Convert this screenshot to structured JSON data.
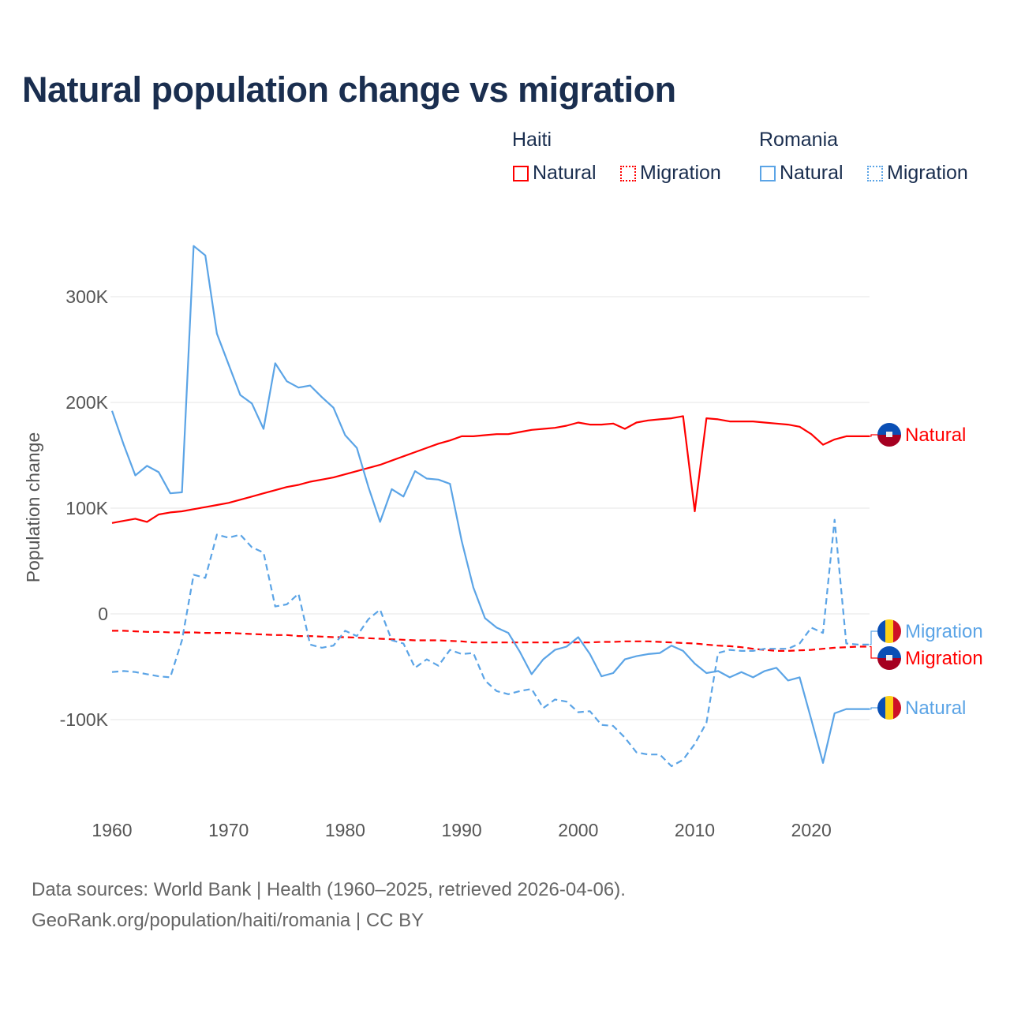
{
  "chart_data": {
    "type": "line",
    "title": "Natural population change vs migration",
    "xlabel": "",
    "ylabel": "Population change",
    "xlim": [
      1960,
      2025
    ],
    "ylim": [
      -150000,
      350000
    ],
    "x_ticks": [
      "1960",
      "1970",
      "1980",
      "1990",
      "2000",
      "2010",
      "2020"
    ],
    "y_ticks": [
      {
        "v": 300000,
        "label": "300K"
      },
      {
        "v": 200000,
        "label": "200K"
      },
      {
        "v": 100000,
        "label": "100K"
      },
      {
        "v": 0,
        "label": "0"
      },
      {
        "v": -100000,
        "label": "-100K"
      }
    ],
    "grid": true,
    "legend": {
      "groups": [
        {
          "name": "Haiti",
          "items": [
            "Natural",
            "Migration"
          ]
        },
        {
          "name": "Romania",
          "items": [
            "Natural",
            "Migration"
          ]
        }
      ],
      "placement": "top-right"
    },
    "x": [
      1960,
      1961,
      1962,
      1963,
      1964,
      1965,
      1966,
      1967,
      1968,
      1969,
      1970,
      1971,
      1972,
      1973,
      1974,
      1975,
      1976,
      1977,
      1978,
      1979,
      1980,
      1981,
      1982,
      1983,
      1984,
      1985,
      1986,
      1987,
      1988,
      1989,
      1990,
      1991,
      1992,
      1993,
      1994,
      1995,
      1996,
      1997,
      1998,
      1999,
      2000,
      2001,
      2002,
      2003,
      2004,
      2005,
      2006,
      2007,
      2008,
      2009,
      2010,
      2011,
      2012,
      2013,
      2014,
      2015,
      2016,
      2017,
      2018,
      2019,
      2020,
      2021,
      2022,
      2023,
      2024,
      2025
    ],
    "series": [
      {
        "name": "Haiti Natural",
        "country": "Haiti",
        "kind": "Natural",
        "color": "#ff0000",
        "dash": false,
        "values": [
          86000,
          88000,
          90000,
          87000,
          94000,
          96000,
          97000,
          99000,
          101000,
          103000,
          105000,
          108000,
          111000,
          114000,
          117000,
          120000,
          122000,
          125000,
          127000,
          129000,
          132000,
          135000,
          138000,
          141000,
          145000,
          149000,
          153000,
          157000,
          161000,
          164000,
          168000,
          168000,
          169000,
          170000,
          170000,
          172000,
          174000,
          175000,
          176000,
          178000,
          181000,
          179000,
          179000,
          180000,
          175000,
          181000,
          183000,
          184000,
          185000,
          187000,
          97000,
          185000,
          184000,
          182000,
          182000,
          182000,
          181000,
          180000,
          179000,
          177000,
          170000,
          160000,
          165000,
          168000,
          168000,
          168000
        ]
      },
      {
        "name": "Haiti Migration",
        "country": "Haiti",
        "kind": "Migration",
        "color": "#ff0000",
        "dash": true,
        "values": [
          -16000,
          -16000,
          -16500,
          -17000,
          -17000,
          -17500,
          -17500,
          -17500,
          -18000,
          -18000,
          -18000,
          -18500,
          -19000,
          -19500,
          -20000,
          -20000,
          -21000,
          -21000,
          -21500,
          -22000,
          -22000,
          -22500,
          -23000,
          -23500,
          -24000,
          -24500,
          -25000,
          -25000,
          -25000,
          -25500,
          -26000,
          -27000,
          -27000,
          -27000,
          -27000,
          -27000,
          -27000,
          -27000,
          -27000,
          -27000,
          -27000,
          -27000,
          -26500,
          -26500,
          -26000,
          -26000,
          -26000,
          -26500,
          -27000,
          -27500,
          -28000,
          -29000,
          -30000,
          -30500,
          -31500,
          -33000,
          -34000,
          -35000,
          -35000,
          -34500,
          -34000,
          -33000,
          -32000,
          -31500,
          -31000,
          -31000
        ]
      },
      {
        "name": "Romania Natural",
        "country": "Romania",
        "kind": "Natural",
        "color": "#5ba4e6",
        "dash": false,
        "values": [
          192000,
          160000,
          131000,
          140000,
          134000,
          114000,
          115000,
          348000,
          339000,
          265000,
          236000,
          207000,
          199000,
          175000,
          237000,
          220000,
          214000,
          216000,
          205000,
          195000,
          169000,
          157000,
          120000,
          87000,
          118000,
          111000,
          135000,
          128000,
          127000,
          123000,
          69000,
          25000,
          -4000,
          -13000,
          -18000,
          -36000,
          -57000,
          -43000,
          -34000,
          -31000,
          -22000,
          -38000,
          -59000,
          -56000,
          -43000,
          -40000,
          -38000,
          -37000,
          -30000,
          -35000,
          -47000,
          -56000,
          -54000,
          -60000,
          -55000,
          -60000,
          -54000,
          -51000,
          -63000,
          -60000,
          -100000,
          -141000,
          -94000,
          -90000,
          -90000,
          -90000
        ]
      },
      {
        "name": "Romania Migration",
        "country": "Romania",
        "kind": "Migration",
        "color": "#5ba4e6",
        "dash": true,
        "values": [
          -55000,
          -54000,
          -55000,
          -57000,
          -59000,
          -60000,
          -25000,
          37000,
          34000,
          75000,
          72000,
          75000,
          63000,
          58000,
          7000,
          9000,
          19000,
          -29000,
          -32000,
          -30000,
          -16000,
          -21000,
          -5000,
          4000,
          -25000,
          -28000,
          -51000,
          -43000,
          -49000,
          -34000,
          -38000,
          -37000,
          -63000,
          -73000,
          -76000,
          -73000,
          -71000,
          -89000,
          -81000,
          -83000,
          -93000,
          -92000,
          -105000,
          -106000,
          -117000,
          -131000,
          -133000,
          -133000,
          -144000,
          -138000,
          -123000,
          -103000,
          -37000,
          -34000,
          -35000,
          -35000,
          -33000,
          -33000,
          -33000,
          -28000,
          -13000,
          -18000,
          89000,
          -28000,
          -29000,
          -29000
        ]
      }
    ],
    "end_labels": [
      "Natural",
      "Migration",
      "Migration",
      "Natural"
    ]
  },
  "footer": {
    "line1": "Data sources: World Bank | Health (1960–2025, retrieved 2026-04-06).",
    "line2": "GeoRank.org/population/haiti/romania | CC BY"
  }
}
